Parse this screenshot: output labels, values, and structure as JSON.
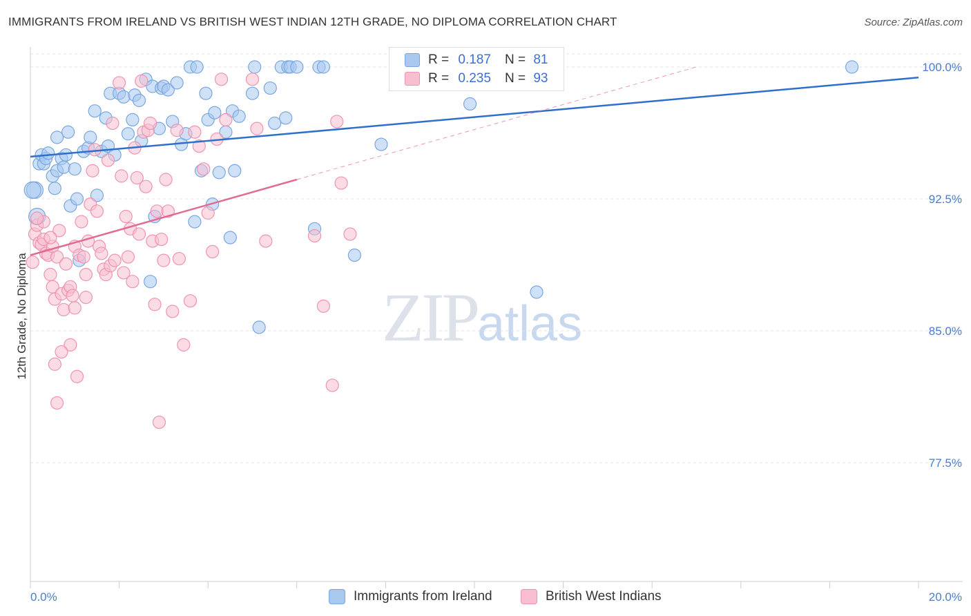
{
  "title": "IMMIGRANTS FROM IRELAND VS BRITISH WEST INDIAN 12TH GRADE, NO DIPLOMA CORRELATION CHART",
  "source": "Source: ZipAtlas.com",
  "watermark": {
    "zip": "ZIP",
    "atlas": "atlas"
  },
  "legend": {
    "r_label": "R =",
    "n_label": "N =",
    "rows": [
      {
        "r": "0.187",
        "n": "81",
        "color": "#a8c8f0",
        "border": "#7aa6e0"
      },
      {
        "r": "0.235",
        "n": "93",
        "color": "#f7bfd0",
        "border": "#ee93b0"
      }
    ]
  },
  "bottom_legend": [
    {
      "label": "Immigrants from Ireland",
      "color": "#a8c8f0",
      "border": "#7aa6e0"
    },
    {
      "label": "British West Indians",
      "color": "#f7bfd0",
      "border": "#ee93b0"
    }
  ],
  "chart_data": {
    "type": "scatter",
    "title": "IMMIGRANTS FROM IRELAND VS BRITISH WEST INDIAN 12TH GRADE, NO DIPLOMA CORRELATION CHART",
    "xlabel": "",
    "ylabel": "12th Grade, No Diploma",
    "xlim": [
      0,
      20
    ],
    "ylim": [
      70,
      100.5
    ],
    "x_tick_labels": [
      "0.0%",
      "20.0%"
    ],
    "y_ticks": [
      77.5,
      85.0,
      92.5,
      100.0
    ],
    "y_tick_labels": [
      "77.5%",
      "85.0%",
      "92.5%",
      "100.0%"
    ],
    "grid": true,
    "legend_position": "top-center",
    "series": [
      {
        "name": "Immigrants from Ireland",
        "color": "#7aa6e0",
        "fill": "#a8c8f0",
        "trend": {
          "x": [
            0,
            20
          ],
          "y": [
            94.9,
            99.4
          ],
          "color": "#2f6fcc"
        },
        "points": [
          [
            0.1,
            93.0
          ],
          [
            0.15,
            91.5
          ],
          [
            0.2,
            94.5
          ],
          [
            0.25,
            95.0
          ],
          [
            0.3,
            94.5
          ],
          [
            0.35,
            94.8
          ],
          [
            0.4,
            95.1
          ],
          [
            0.5,
            93.8
          ],
          [
            0.55,
            93.1
          ],
          [
            0.6,
            94.1
          ],
          [
            0.6,
            96.0
          ],
          [
            0.7,
            94.8
          ],
          [
            0.75,
            94.3
          ],
          [
            0.8,
            95.0
          ],
          [
            0.85,
            96.3
          ],
          [
            0.9,
            92.1
          ],
          [
            1.0,
            94.2
          ],
          [
            1.05,
            92.5
          ],
          [
            1.1,
            89.0
          ],
          [
            1.2,
            95.2
          ],
          [
            1.3,
            95.4
          ],
          [
            1.35,
            96.0
          ],
          [
            1.45,
            97.5
          ],
          [
            1.5,
            92.7
          ],
          [
            1.6,
            95.2
          ],
          [
            1.7,
            97.1
          ],
          [
            1.75,
            95.5
          ],
          [
            1.8,
            98.5
          ],
          [
            1.9,
            95.0
          ],
          [
            2.0,
            98.5
          ],
          [
            2.1,
            98.3
          ],
          [
            2.2,
            96.2
          ],
          [
            2.3,
            97.0
          ],
          [
            2.35,
            98.4
          ],
          [
            2.45,
            98.1
          ],
          [
            2.5,
            95.8
          ],
          [
            2.6,
            99.3
          ],
          [
            2.7,
            87.8
          ],
          [
            2.75,
            98.9
          ],
          [
            2.8,
            91.5
          ],
          [
            2.9,
            96.5
          ],
          [
            2.95,
            98.8
          ],
          [
            3.0,
            98.9
          ],
          [
            3.1,
            98.7
          ],
          [
            3.2,
            96.9
          ],
          [
            3.3,
            99.1
          ],
          [
            3.4,
            95.6
          ],
          [
            3.5,
            96.2
          ],
          [
            3.6,
            100.0
          ],
          [
            3.7,
            91.2
          ],
          [
            3.75,
            100.0
          ],
          [
            3.85,
            94.1
          ],
          [
            3.95,
            98.5
          ],
          [
            4.0,
            97.0
          ],
          [
            4.1,
            92.2
          ],
          [
            4.15,
            97.4
          ],
          [
            4.25,
            94.0
          ],
          [
            4.4,
            96.3
          ],
          [
            4.5,
            90.3
          ],
          [
            4.55,
            97.5
          ],
          [
            4.6,
            94.1
          ],
          [
            4.7,
            97.2
          ],
          [
            5.0,
            98.5
          ],
          [
            5.05,
            100.0
          ],
          [
            5.15,
            85.2
          ],
          [
            5.4,
            98.8
          ],
          [
            5.5,
            96.8
          ],
          [
            5.65,
            100.0
          ],
          [
            5.75,
            97.1
          ],
          [
            5.8,
            100.0
          ],
          [
            5.85,
            100.0
          ],
          [
            6.0,
            100.0
          ],
          [
            6.4,
            90.8
          ],
          [
            6.5,
            100.0
          ],
          [
            6.6,
            100.0
          ],
          [
            7.3,
            89.3
          ],
          [
            7.9,
            95.6
          ],
          [
            9.9,
            97.9
          ],
          [
            11.4,
            87.2
          ],
          [
            18.5,
            100.0
          ],
          [
            0.05,
            93.0
          ]
        ]
      },
      {
        "name": "British West Indians",
        "color": "#ee93b0",
        "fill": "#f7bfd0",
        "trend": {
          "x": [
            0,
            6.0
          ],
          "y": [
            89.3,
            93.6
          ],
          "color": "#e06c95",
          "dash_to": [
            15,
            100
          ]
        },
        "points": [
          [
            0.05,
            88.9
          ],
          [
            0.1,
            90.5
          ],
          [
            0.15,
            91.0
          ],
          [
            0.2,
            90.0
          ],
          [
            0.25,
            89.9
          ],
          [
            0.3,
            90.2
          ],
          [
            0.35,
            89.4
          ],
          [
            0.4,
            89.3
          ],
          [
            0.45,
            88.2
          ],
          [
            0.5,
            89.8
          ],
          [
            0.5,
            87.5
          ],
          [
            0.55,
            86.8
          ],
          [
            0.6,
            89.2
          ],
          [
            0.65,
            90.7
          ],
          [
            0.7,
            87.1
          ],
          [
            0.75,
            86.2
          ],
          [
            0.8,
            88.8
          ],
          [
            0.85,
            87.3
          ],
          [
            0.9,
            87.5
          ],
          [
            0.9,
            84.2
          ],
          [
            0.95,
            87.0
          ],
          [
            1.0,
            86.3
          ],
          [
            1.0,
            89.8
          ],
          [
            1.05,
            82.4
          ],
          [
            1.1,
            89.3
          ],
          [
            1.15,
            91.2
          ],
          [
            1.2,
            89.2
          ],
          [
            1.25,
            88.2
          ],
          [
            1.3,
            90.1
          ],
          [
            1.35,
            92.2
          ],
          [
            1.4,
            94.1
          ],
          [
            1.45,
            95.3
          ],
          [
            1.5,
            91.8
          ],
          [
            1.55,
            89.8
          ],
          [
            1.6,
            89.4
          ],
          [
            1.65,
            88.5
          ],
          [
            1.7,
            88.2
          ],
          [
            1.75,
            94.7
          ],
          [
            1.8,
            88.7
          ],
          [
            1.85,
            96.8
          ],
          [
            1.9,
            89.0
          ],
          [
            2.0,
            99.1
          ],
          [
            2.05,
            93.8
          ],
          [
            2.1,
            88.3
          ],
          [
            2.15,
            91.5
          ],
          [
            2.2,
            89.2
          ],
          [
            2.25,
            90.8
          ],
          [
            2.3,
            87.8
          ],
          [
            2.35,
            95.4
          ],
          [
            2.4,
            93.7
          ],
          [
            2.45,
            90.5
          ],
          [
            2.5,
            99.2
          ],
          [
            2.55,
            96.3
          ],
          [
            2.6,
            93.2
          ],
          [
            2.65,
            96.4
          ],
          [
            2.7,
            96.8
          ],
          [
            2.75,
            90.1
          ],
          [
            2.8,
            86.5
          ],
          [
            2.85,
            91.8
          ],
          [
            2.9,
            79.8
          ],
          [
            2.95,
            90.2
          ],
          [
            3.0,
            89.0
          ],
          [
            3.05,
            93.6
          ],
          [
            3.1,
            91.8
          ],
          [
            3.2,
            86.1
          ],
          [
            3.3,
            96.4
          ],
          [
            3.35,
            89.1
          ],
          [
            3.45,
            84.2
          ],
          [
            3.6,
            86.7
          ],
          [
            3.7,
            96.3
          ],
          [
            3.8,
            95.5
          ],
          [
            3.9,
            94.2
          ],
          [
            4.0,
            91.7
          ],
          [
            4.1,
            89.5
          ],
          [
            4.2,
            95.9
          ],
          [
            4.3,
            99.3
          ],
          [
            4.4,
            97.0
          ],
          [
            5.0,
            99.3
          ],
          [
            5.1,
            96.5
          ],
          [
            5.3,
            90.1
          ],
          [
            6.4,
            90.4
          ],
          [
            6.6,
            86.4
          ],
          [
            6.8,
            81.9
          ],
          [
            6.9,
            96.9
          ],
          [
            7.0,
            93.4
          ],
          [
            7.2,
            90.5
          ],
          [
            0.55,
            83.1
          ],
          [
            0.6,
            80.9
          ],
          [
            0.7,
            83.8
          ],
          [
            0.3,
            91.2
          ],
          [
            1.25,
            86.9
          ],
          [
            0.45,
            90.3
          ],
          [
            0.15,
            91.4
          ]
        ]
      }
    ]
  }
}
